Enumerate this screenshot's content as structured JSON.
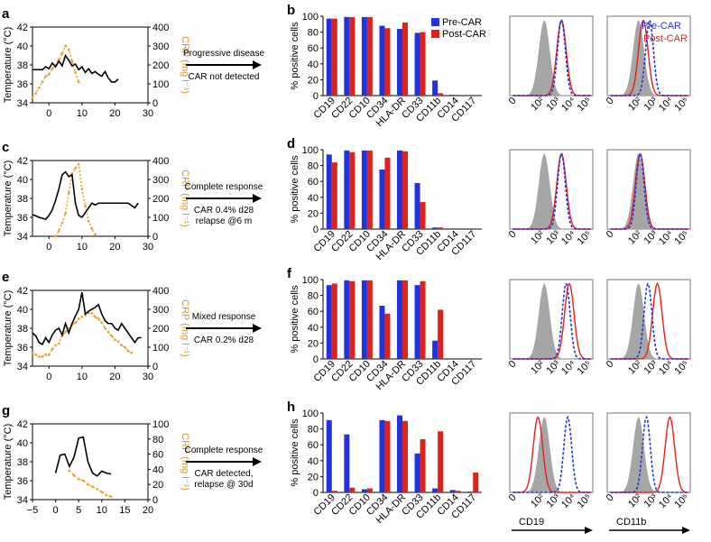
{
  "colors": {
    "pre_car": "#2233dd",
    "post_car": "#e0231a",
    "temperature": "#000000",
    "crp": "#e3a23a",
    "control": "#a6a6a6"
  },
  "legend": {
    "pre": "Pre-CAR",
    "post": "Post-CAR"
  },
  "hist_axis_labels": {
    "cd19": "CD19",
    "cd11b": "CD11b"
  },
  "chart_data": [
    {
      "type": "line",
      "panel": "a",
      "ylabel_left": "Temperature (°C)",
      "ylabel_right": "CRP (mg l⁻¹)",
      "xlim": [
        -5,
        30
      ],
      "xticks": [
        0,
        10,
        20,
        30
      ],
      "ylim_left": [
        34,
        42
      ],
      "yticks_left": [
        34,
        36,
        38,
        40,
        42
      ],
      "ylim_right": [
        0,
        400
      ],
      "yticks_right": [
        0,
        100,
        200,
        300,
        400
      ],
      "temperature": {
        "x": [
          -5,
          -4,
          -3,
          -2,
          -1,
          0,
          1,
          2,
          3,
          4,
          5,
          6,
          7,
          8,
          9,
          10,
          11,
          12,
          13,
          14,
          15,
          16,
          17,
          18,
          19,
          20,
          21
        ],
        "y": [
          37.5,
          37.5,
          37.5,
          37.5,
          37.8,
          37.6,
          38.2,
          37.8,
          38.4,
          37.9,
          39.0,
          38.5,
          37.9,
          38.1,
          37.5,
          37.8,
          37.2,
          37.6,
          37.1,
          37.3,
          37.0,
          36.8,
          37.3,
          36.6,
          36.2,
          36.2,
          36.5
        ]
      },
      "crp": {
        "x": [
          -5,
          -4,
          -3,
          -2,
          -1,
          0,
          1,
          2,
          3,
          4,
          5,
          6,
          7,
          8,
          9
        ],
        "y": [
          30,
          50,
          80,
          110,
          140,
          150,
          180,
          200,
          230,
          260,
          300,
          280,
          220,
          160,
          110
        ]
      },
      "annotation": [
        "Progressive disease",
        "CAR not detected"
      ]
    },
    {
      "type": "line",
      "panel": "c",
      "ylabel_left": "Temperature (°C)",
      "ylabel_right": "CRP (mg l⁻¹)",
      "xlim": [
        -5,
        30
      ],
      "xticks": [
        0,
        10,
        20,
        30
      ],
      "ylim_left": [
        34,
        42
      ],
      "yticks_left": [
        34,
        36,
        38,
        40,
        42
      ],
      "ylim_right": [
        0,
        400
      ],
      "yticks_right": [
        0,
        100,
        200,
        300,
        400
      ],
      "temperature": {
        "x": [
          -5,
          -3,
          -1,
          0,
          1,
          2,
          3,
          4,
          5,
          6,
          7,
          8,
          9,
          10,
          11,
          12,
          13,
          14,
          15,
          16,
          18,
          20,
          22,
          24,
          26,
          27
        ],
        "y": [
          36.3,
          36.0,
          35.8,
          36.2,
          36.8,
          37.8,
          39.0,
          40.5,
          40.8,
          40.3,
          40.5,
          37.5,
          36.2,
          36.0,
          36.5,
          37.0,
          37.5,
          37.3,
          37.5,
          37.5,
          37.5,
          37.5,
          37.5,
          37.5,
          37.0,
          37.5
        ]
      },
      "crp": {
        "x": [
          2,
          3,
          4,
          5,
          6,
          7,
          8,
          9,
          10,
          11,
          12,
          13,
          14
        ],
        "y": [
          0,
          30,
          70,
          120,
          230,
          330,
          360,
          380,
          250,
          160,
          80,
          40,
          10
        ]
      },
      "annotation": [
        "Complete response",
        "CAR 0.4% d28",
        "relapse @6 m"
      ]
    },
    {
      "type": "line",
      "panel": "e",
      "ylabel_left": "Temperature (°C)",
      "ylabel_right": "CRP (mg l⁻¹)",
      "xlim": [
        -5,
        30
      ],
      "xticks": [
        0,
        10,
        20,
        30
      ],
      "ylim_left": [
        34,
        42
      ],
      "yticks_left": [
        34,
        36,
        38,
        40,
        42
      ],
      "ylim_right": [
        0,
        400
      ],
      "yticks_right": [
        0,
        100,
        200,
        300,
        400
      ],
      "temperature": {
        "x": [
          -5,
          -4,
          -3,
          -2,
          -1,
          0,
          1,
          2,
          3,
          4,
          5,
          6,
          7,
          8,
          9,
          10,
          11,
          12,
          13,
          14,
          15,
          16,
          17,
          18,
          19,
          20,
          21,
          22,
          23,
          24,
          25,
          26,
          27,
          28
        ],
        "y": [
          37.5,
          37.2,
          36.5,
          36.3,
          37.0,
          36.5,
          37.3,
          37.8,
          38.0,
          37.3,
          38.5,
          37.5,
          38.5,
          39.3,
          40.0,
          41.8,
          39.5,
          39.8,
          40.0,
          40.2,
          40.5,
          39.5,
          38.8,
          38.5,
          38.5,
          38.0,
          37.8,
          38.5,
          38.0,
          37.5,
          37.0,
          36.5,
          37.0,
          37.0
        ]
      },
      "crp": {
        "x": [
          -5,
          -4,
          -3,
          -2,
          -1,
          0,
          1,
          2,
          3,
          4,
          5,
          6,
          7,
          8,
          9,
          10,
          11,
          12,
          13,
          14,
          15,
          16,
          17,
          18,
          19,
          20,
          21,
          22,
          23,
          24,
          25
        ],
        "y": [
          70,
          60,
          50,
          50,
          60,
          60,
          90,
          110,
          120,
          160,
          180,
          200,
          220,
          230,
          250,
          260,
          270,
          280,
          280,
          260,
          250,
          230,
          200,
          180,
          160,
          140,
          130,
          110,
          100,
          80,
          70
        ]
      },
      "annotation": [
        "Mixed response",
        "CAR 0.2% d28"
      ]
    },
    {
      "type": "line",
      "panel": "g",
      "ylabel_left": "Temperature (°C)",
      "ylabel_right": "CRP (mg l⁻¹)",
      "xlim": [
        -5,
        20
      ],
      "xticks": [
        -5,
        0,
        5,
        10,
        15,
        20
      ],
      "ylim_left": [
        34,
        42
      ],
      "yticks_left": [
        34,
        36,
        38,
        40,
        42
      ],
      "ylim_right": [
        0,
        100
      ],
      "yticks_right": [
        0,
        20,
        40,
        60,
        80,
        100
      ],
      "temperature": {
        "x": [
          0,
          1,
          2,
          3,
          4,
          5,
          6,
          7,
          8,
          9,
          10,
          11,
          12
        ],
        "y": [
          36.8,
          38.7,
          38.8,
          37.5,
          38.5,
          40.5,
          40.6,
          38.0,
          36.8,
          36.5,
          37.0,
          36.8,
          36.7
        ]
      },
      "crp": {
        "x": [
          3,
          4,
          5,
          6,
          7,
          8,
          9,
          10,
          11,
          12
        ],
        "y": [
          38,
          32,
          27,
          25,
          20,
          17,
          14,
          10,
          6,
          4
        ]
      },
      "annotation": [
        "Complete response",
        "CAR detected,",
        "relapse @ 30d"
      ]
    },
    {
      "type": "bar",
      "panel": "b",
      "ylabel": "% positive cells",
      "ylim": [
        0,
        100
      ],
      "yticks": [
        0,
        20,
        40,
        60,
        80,
        100
      ],
      "categories": [
        "CD19",
        "CD22",
        "CD10",
        "CD34",
        "HLA-DR",
        "CD33",
        "CD11b",
        "CD14",
        "CD117"
      ],
      "series": [
        {
          "name": "Pre-CAR",
          "values": [
            97,
            99,
            99,
            88,
            84,
            79,
            19,
            1,
            0
          ]
        },
        {
          "name": "Post-CAR",
          "values": [
            97,
            99,
            99,
            85,
            92,
            80,
            3,
            0,
            0
          ]
        }
      ]
    },
    {
      "type": "bar",
      "panel": "d",
      "ylabel": "% positive cells",
      "ylim": [
        0,
        100
      ],
      "yticks": [
        0,
        20,
        40,
        60,
        80,
        100
      ],
      "categories": [
        "CD19",
        "CD22",
        "CD10",
        "CD34",
        "HLA-DR",
        "CD33",
        "CD11b",
        "CD14",
        "CD117"
      ],
      "series": [
        {
          "name": "Pre-CAR",
          "values": [
            94,
            99,
            99,
            75,
            99,
            58,
            2,
            0,
            0
          ]
        },
        {
          "name": "Post-CAR",
          "values": [
            84,
            97,
            99,
            90,
            98,
            34,
            2,
            0,
            0
          ]
        }
      ]
    },
    {
      "type": "bar",
      "panel": "f",
      "ylabel": "% positive cells",
      "ylim": [
        0,
        100
      ],
      "yticks": [
        0,
        20,
        40,
        60,
        80,
        100
      ],
      "categories": [
        "CD19",
        "CD22",
        "CD10",
        "CD34",
        "HLA-DR",
        "CD33",
        "CD11b",
        "CD14",
        "CD117"
      ],
      "series": [
        {
          "name": "Pre-CAR",
          "values": [
            93,
            99,
            99,
            67,
            99,
            93,
            23,
            0,
            0
          ]
        },
        {
          "name": "Post-CAR",
          "values": [
            95,
            98,
            99,
            57,
            99,
            98,
            62,
            0,
            0
          ]
        }
      ]
    },
    {
      "type": "bar",
      "panel": "h",
      "ylabel": "% positive cells",
      "ylim": [
        0,
        100
      ],
      "yticks": [
        0,
        20,
        40,
        60,
        80,
        100
      ],
      "categories": [
        "CD19",
        "CD22",
        "CD10",
        "CD34",
        "HLA-DR",
        "CD33",
        "CD11b",
        "CD14",
        "CD117"
      ],
      "series": [
        {
          "name": "Pre-CAR",
          "values": [
            91,
            73,
            4,
            91,
            97,
            49,
            5,
            3,
            1
          ]
        },
        {
          "name": "Post-CAR",
          "values": [
            2,
            6,
            5,
            90,
            90,
            67,
            77,
            2,
            25
          ]
        }
      ]
    },
    {
      "type": "area",
      "panel": "histograms",
      "xticks": [
        "0",
        "10²",
        "10³",
        "10⁴",
        "10⁵"
      ],
      "marker_columns": [
        "CD19",
        "CD11b"
      ],
      "rows": [
        {
          "row": "b",
          "cd19": {
            "control_peak": 2.2,
            "pre_peak": 3.3,
            "post_peak": 3.3
          },
          "cd11b": {
            "control_peak": 2.0,
            "pre_peak": 2.7,
            "post_peak": 2.3
          }
        },
        {
          "row": "d",
          "cd19": {
            "control_peak": 2.2,
            "pre_peak": 3.3,
            "post_peak": 3.3
          },
          "cd11b": {
            "control_peak": 2.0,
            "pre_peak": 2.1,
            "post_peak": 2.1
          }
        },
        {
          "row": "f",
          "cd19": {
            "control_peak": 2.2,
            "pre_peak": 3.6,
            "post_peak": 3.8
          },
          "cd11b": {
            "control_peak": 2.0,
            "pre_peak": 2.6,
            "post_peak": 3.2
          }
        },
        {
          "row": "h",
          "cd19": {
            "control_peak": 2.2,
            "pre_peak": 3.7,
            "post_peak": 1.8
          },
          "cd11b": {
            "control_peak": 2.0,
            "pre_peak": 2.5,
            "post_peak": 4.0
          }
        }
      ]
    }
  ]
}
